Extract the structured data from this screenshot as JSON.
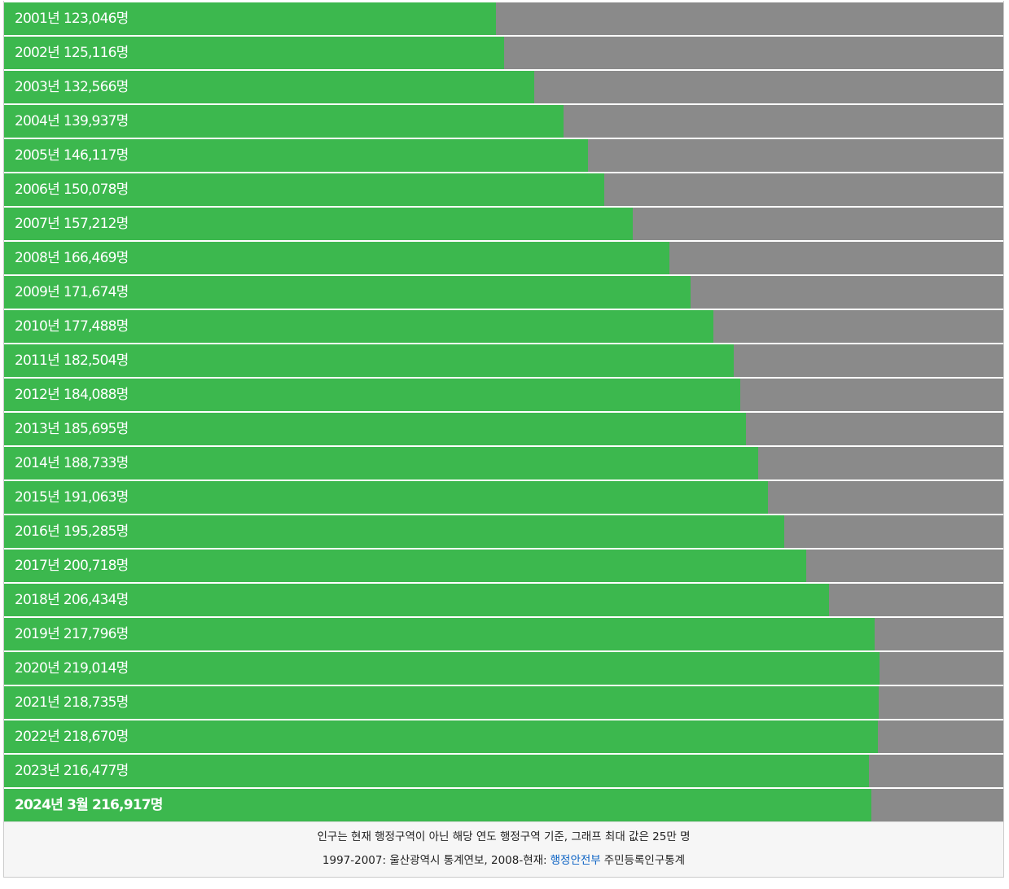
{
  "chart_data": {
    "type": "bar",
    "orientation": "horizontal",
    "categories": [
      "2001년",
      "2002년",
      "2003년",
      "2004년",
      "2005년",
      "2006년",
      "2007년",
      "2008년",
      "2009년",
      "2010년",
      "2011년",
      "2012년",
      "2013년",
      "2014년",
      "2015년",
      "2016년",
      "2017년",
      "2018년",
      "2019년",
      "2020년",
      "2021년",
      "2022년",
      "2023년",
      "2024년 3월"
    ],
    "values": [
      123046,
      125116,
      132566,
      139937,
      146117,
      150078,
      157212,
      166469,
      171674,
      177488,
      182504,
      184088,
      185695,
      188733,
      191063,
      195285,
      200718,
      206434,
      217796,
      219014,
      218735,
      218670,
      216477,
      216917
    ],
    "value_labels": [
      "123,046명",
      "125,116명",
      "132,566명",
      "139,937명",
      "146,117명",
      "150,078명",
      "157,212명",
      "166,469명",
      "171,674명",
      "177,488명",
      "182,504명",
      "184,088명",
      "185,695명",
      "188,733명",
      "191,063명",
      "195,285명",
      "200,718명",
      "206,434명",
      "217,796명",
      "219,014명",
      "218,735명",
      "218,670명",
      "216,477명",
      "216,917명"
    ],
    "xlim": [
      0,
      250000
    ],
    "color": "#3cb84e",
    "track_color": "#8a8a8a",
    "caption": "인구는 현재 행정구역이 아닌 해당 연도 행정구역 기준, 그래프 최대 값은 25만 명",
    "source": {
      "prefix": "1997-2007: 울산광역시 통계연보, 2008-현재:",
      "link": "행정안전부",
      "suffix": "주민등록인구통계"
    }
  }
}
